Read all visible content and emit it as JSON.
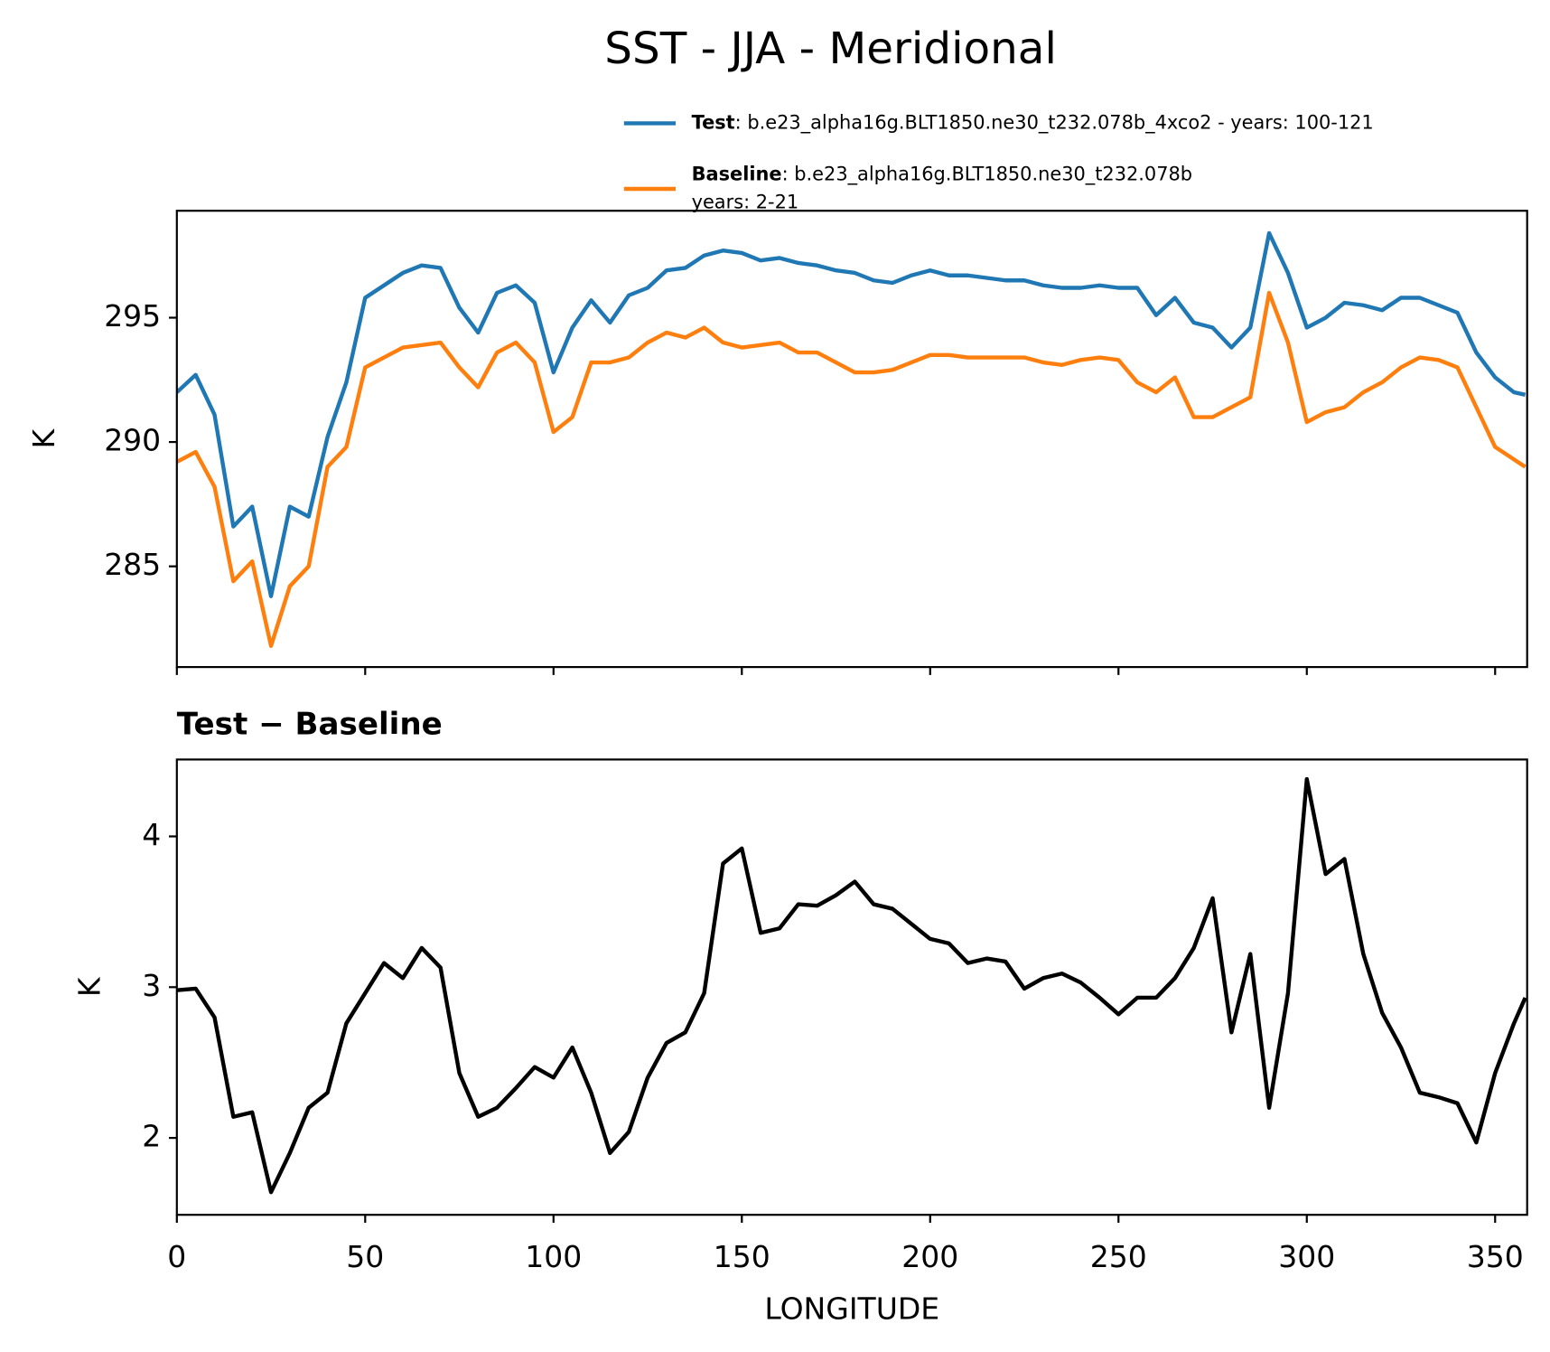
{
  "chart_data": [
    {
      "type": "line",
      "title": "SST - JJA - Meridional",
      "y_label": "K",
      "x": [
        0,
        5,
        10,
        15,
        20,
        25,
        30,
        35,
        40,
        45,
        50,
        55,
        60,
        65,
        70,
        75,
        80,
        85,
        90,
        95,
        100,
        105,
        110,
        115,
        120,
        125,
        130,
        135,
        140,
        145,
        150,
        155,
        160,
        165,
        170,
        175,
        180,
        185,
        190,
        195,
        200,
        205,
        210,
        215,
        220,
        225,
        230,
        235,
        240,
        245,
        250,
        255,
        260,
        265,
        270,
        275,
        280,
        285,
        290,
        295,
        300,
        305,
        310,
        315,
        320,
        325,
        330,
        335,
        340,
        345,
        350,
        355,
        358
      ],
      "series": [
        {
          "name": "Test",
          "description": [
            ": b.e23_alpha16g.BLT1850.ne30_t232.078b_4xco2 - years: 100-121"
          ],
          "color": "#1f77b4",
          "values": [
            292.0,
            292.7,
            291.1,
            286.6,
            287.4,
            283.8,
            287.4,
            287.0,
            290.2,
            292.4,
            295.8,
            296.3,
            296.8,
            297.1,
            297.0,
            295.4,
            294.4,
            296.0,
            296.3,
            295.6,
            292.8,
            294.6,
            295.7,
            294.8,
            295.9,
            296.2,
            296.9,
            297.0,
            297.5,
            297.7,
            297.6,
            297.3,
            297.4,
            297.2,
            297.1,
            296.9,
            296.8,
            296.5,
            296.4,
            296.7,
            296.9,
            296.7,
            296.7,
            296.6,
            296.5,
            296.5,
            296.3,
            296.2,
            296.2,
            296.3,
            296.2,
            296.2,
            295.1,
            295.8,
            294.8,
            294.6,
            293.8,
            294.6,
            298.4,
            296.8,
            294.6,
            295.0,
            295.6,
            295.5,
            295.3,
            295.8,
            295.8,
            295.5,
            295.2,
            293.6,
            292.6,
            292.0,
            291.9
          ]
        },
        {
          "name": "Baseline",
          "description": [
            ": b.e23_alpha16g.BLT1850.ne30_t232.078b",
            "years: 2-21"
          ],
          "color": "#ff7f0e",
          "values": [
            289.2,
            289.6,
            288.2,
            284.4,
            285.2,
            281.8,
            284.2,
            285.0,
            289.0,
            289.8,
            293.0,
            293.4,
            293.8,
            293.9,
            294.0,
            293.0,
            292.2,
            293.6,
            294.0,
            293.2,
            290.4,
            291.0,
            293.2,
            293.2,
            293.4,
            294.0,
            294.4,
            294.2,
            294.6,
            294.0,
            293.8,
            293.9,
            294.0,
            293.6,
            293.6,
            293.2,
            292.8,
            292.8,
            292.9,
            293.2,
            293.5,
            293.5,
            293.4,
            293.4,
            293.4,
            293.4,
            293.2,
            293.1,
            293.3,
            293.4,
            293.3,
            292.4,
            292.0,
            292.6,
            291.0,
            291.0,
            291.4,
            291.8,
            296.0,
            294.0,
            290.8,
            291.2,
            291.4,
            292.0,
            292.4,
            293.0,
            293.4,
            293.3,
            293.0,
            291.4,
            289.8,
            289.3,
            289.0
          ]
        }
      ],
      "xlim": [
        0,
        358.5
      ],
      "ylim": [
        280.95,
        299.3
      ],
      "yticks": [
        285,
        290,
        295
      ],
      "legend": "above"
    },
    {
      "type": "line",
      "title": "Test − Baseline",
      "x_label": "LONGITUDE",
      "y_label": "K",
      "x": [
        0,
        5,
        10,
        15,
        20,
        25,
        30,
        35,
        40,
        45,
        50,
        55,
        60,
        65,
        70,
        75,
        80,
        85,
        90,
        95,
        100,
        105,
        110,
        115,
        120,
        125,
        130,
        135,
        140,
        145,
        150,
        155,
        160,
        165,
        170,
        175,
        180,
        185,
        190,
        195,
        200,
        205,
        210,
        215,
        220,
        225,
        230,
        235,
        240,
        245,
        250,
        255,
        260,
        265,
        270,
        275,
        280,
        285,
        290,
        295,
        300,
        305,
        310,
        315,
        320,
        325,
        330,
        335,
        340,
        345,
        350,
        355,
        358
      ],
      "color": "#000000",
      "values": [
        2.98,
        2.99,
        2.8,
        2.14,
        2.17,
        1.64,
        1.9,
        2.2,
        2.3,
        2.76,
        2.96,
        3.16,
        3.06,
        3.26,
        3.13,
        2.43,
        2.14,
        2.2,
        2.33,
        2.47,
        2.4,
        2.6,
        2.3,
        1.9,
        2.04,
        2.4,
        2.63,
        2.7,
        2.96,
        3.82,
        3.92,
        3.36,
        3.39,
        3.55,
        3.54,
        3.61,
        3.7,
        3.55,
        3.52,
        3.42,
        3.32,
        3.29,
        3.16,
        3.19,
        3.17,
        2.99,
        3.06,
        3.09,
        3.03,
        2.93,
        2.82,
        2.93,
        2.93,
        3.06,
        3.26,
        3.59,
        2.7,
        3.22,
        2.2,
        2.96,
        4.38,
        3.75,
        3.85,
        3.22,
        2.83,
        2.6,
        2.3,
        2.27,
        2.23,
        1.97,
        2.43,
        2.76,
        2.93
      ],
      "xlim": [
        0,
        358.5
      ],
      "ylim": [
        1.49,
        4.51
      ],
      "xticks": [
        0,
        50,
        100,
        150,
        200,
        250,
        300,
        350
      ],
      "yticks": [
        2,
        3,
        4
      ]
    }
  ]
}
